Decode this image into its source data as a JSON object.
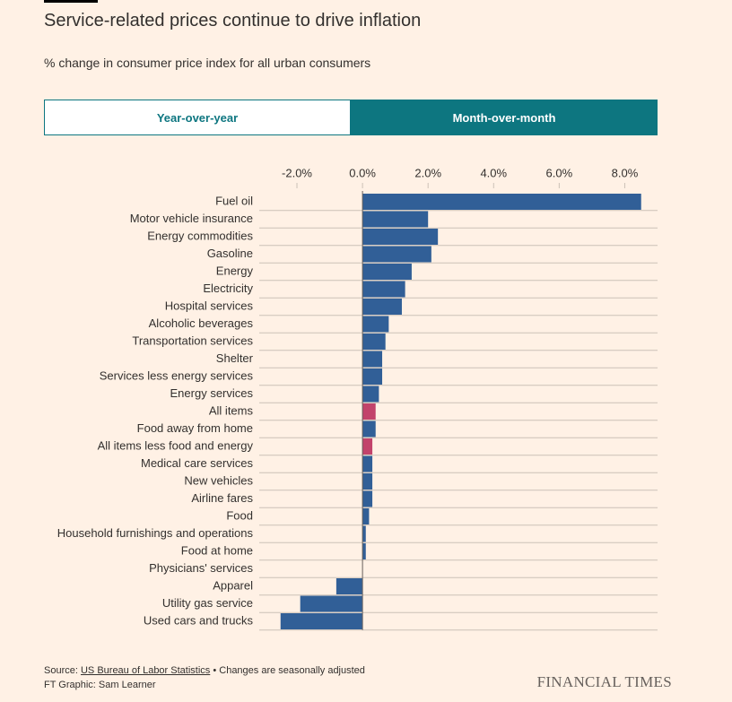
{
  "chart_data": {
    "type": "barh",
    "title": "Service-related prices continue to drive inflation",
    "subtitle": "% change in consumer price index for all urban consumers",
    "categories": [
      "Fuel oil",
      "Motor vehicle insurance",
      "Energy commodities",
      "Gasoline",
      "Energy",
      "Electricity",
      "Hospital services",
      "Alcoholic beverages",
      "Transportation services",
      "Shelter",
      "Services less energy services",
      "Energy services",
      "All items",
      "Food away from home",
      "All items less food and energy",
      "Medical care services",
      "New vehicles",
      "Airline fares",
      "Food",
      "Household furnishings and operations",
      "Food at home",
      "Physicians' services",
      "Apparel",
      "Utility gas service",
      "Used cars and trucks"
    ],
    "values": [
      8.5,
      2.0,
      2.3,
      2.1,
      1.5,
      1.3,
      1.2,
      0.8,
      0.7,
      0.6,
      0.6,
      0.5,
      0.4,
      0.4,
      0.3,
      0.3,
      0.3,
      0.3,
      0.2,
      0.1,
      0.1,
      0.0,
      -0.8,
      -1.9,
      -2.5
    ],
    "colors": [
      "#315f97",
      "#315f97",
      "#315f97",
      "#315f97",
      "#315f97",
      "#315f97",
      "#315f97",
      "#315f97",
      "#315f97",
      "#315f97",
      "#315f97",
      "#315f97",
      "#c2436b",
      "#315f97",
      "#c2436b",
      "#315f97",
      "#315f97",
      "#315f97",
      "#315f97",
      "#315f97",
      "#315f97",
      "#315f97",
      "#315f97",
      "#315f97",
      "#315f97"
    ],
    "xlim": [
      -3.15,
      9.0
    ],
    "xticks": [
      {
        "value": -2,
        "label": "-2.0%"
      },
      {
        "value": 0,
        "label": "0.0%"
      },
      {
        "value": 2,
        "label": "2.0%"
      },
      {
        "value": 4,
        "label": "4.0%"
      },
      {
        "value": 6,
        "label": "6.0%"
      },
      {
        "value": 8,
        "label": "8.0%"
      }
    ]
  },
  "controls": {
    "tabs": [
      "Year-over-year",
      "Month-over-month"
    ],
    "active_tab": 1
  },
  "footer": {
    "source_label": "Source:",
    "source_link": "US Bureau of Labor Statistics",
    "source_note": "• Changes are seasonally adjusted",
    "credit": "FT Graphic: Sam Learner",
    "brand": "FINANCIAL TIMES"
  }
}
